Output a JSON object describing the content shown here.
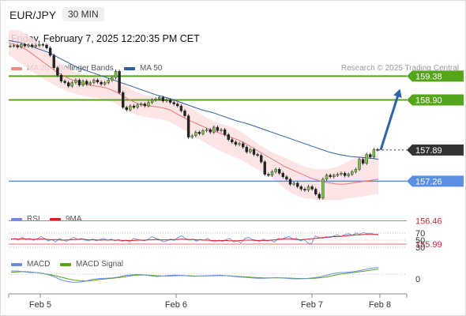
{
  "header": {
    "symbol": "EUR/JPY",
    "timeframe": "30 MIN",
    "datetime": "Friday, February 7, 2025 12:20:35 PM CET",
    "credit": "Research © 2025 Trading Central"
  },
  "colors": {
    "bollinger": "#f08a8a",
    "ma50": "#2f5e9e",
    "resistance": "#55a51b",
    "support": "#5b8fe6",
    "minor_level": "#ec6b7a",
    "arrow": "#2f62a8",
    "current": "#333333",
    "rsi": "#6b8fe0",
    "rsi_ma": "#d81e1e",
    "macd": "#6b8fe0",
    "macd_signal": "#55a51b"
  },
  "chart_data": [
    {
      "type": "candlestick",
      "panel": "price",
      "legend": [
        {
          "name": "MA 20 + Bollinger Bands",
          "color": "#f08a8a"
        },
        {
          "name": "MA 50",
          "color": "#2f5e9e"
        }
      ],
      "ylim": [
        155.9,
        159.6
      ],
      "x_ticks": [
        "Feb 5",
        "Feb 6",
        "Feb 7",
        "Feb 8"
      ],
      "levels": [
        {
          "label": "159.38",
          "value": 159.38,
          "kind": "resistance"
        },
        {
          "label": "158.90",
          "value": 158.9,
          "kind": "resistance"
        },
        {
          "label": "157.89",
          "value": 157.89,
          "kind": "current"
        },
        {
          "label": "157.26",
          "value": 157.26,
          "kind": "support"
        },
        {
          "label": "156.46",
          "value": 156.46,
          "kind": "minor"
        },
        {
          "label": "155.99",
          "value": 155.99,
          "kind": "minor"
        }
      ],
      "close": [
        159.99,
        160.0,
        159.97,
        160.02,
        159.99,
        160.01,
        159.98,
        160.0,
        160.02,
        160.01,
        159.95,
        159.8,
        159.55,
        159.4,
        159.28,
        159.25,
        159.18,
        159.25,
        159.3,
        159.2,
        159.28,
        159.22,
        159.25,
        159.3,
        159.26,
        159.22,
        159.25,
        159.3,
        159.35,
        159.48,
        159.05,
        158.75,
        158.7,
        158.78,
        158.75,
        158.8,
        158.82,
        158.78,
        158.85,
        158.9,
        158.92,
        158.95,
        158.88,
        158.9,
        158.85,
        158.82,
        158.78,
        158.68,
        158.58,
        158.15,
        158.18,
        158.25,
        158.22,
        158.28,
        158.3,
        158.25,
        158.35,
        158.28,
        158.3,
        158.2,
        158.1,
        158.05,
        158.0,
        158.02,
        157.95,
        157.85,
        157.9,
        157.8,
        157.78,
        157.65,
        157.4,
        157.38,
        157.45,
        157.5,
        157.42,
        157.35,
        157.3,
        157.2,
        157.22,
        157.15,
        157.1,
        157.08,
        157.15,
        157.1,
        157.0,
        156.92,
        157.3,
        157.38,
        157.35,
        157.38,
        157.4,
        157.42,
        157.37,
        157.4,
        157.45,
        157.5,
        157.7,
        157.62,
        157.8,
        157.75,
        157.9,
        157.89
      ],
      "ma50": [
        160.1,
        160.08,
        160.06,
        160.02,
        159.98,
        159.94,
        159.9,
        159.86,
        159.8,
        159.74,
        159.68,
        159.62,
        159.56,
        159.52,
        159.48,
        159.44,
        159.4,
        159.36,
        159.32,
        159.28,
        159.24,
        159.2,
        159.16,
        159.12,
        159.08,
        159.04,
        159.0,
        158.97,
        158.94,
        158.9,
        158.86,
        158.82,
        158.78,
        158.74,
        158.7,
        158.67,
        158.64,
        158.6,
        158.56,
        158.52,
        158.48,
        158.45,
        158.42,
        158.38,
        158.34,
        158.3,
        158.26,
        158.22,
        158.18,
        158.14,
        158.1,
        158.06,
        158.02,
        157.98,
        157.94,
        157.9,
        157.86,
        157.83,
        157.8,
        157.78,
        157.76,
        157.75,
        157.74,
        157.73,
        157.72,
        157.7
      ],
      "ma20": [
        160.05,
        160.02,
        159.96,
        159.88,
        159.78,
        159.68,
        159.58,
        159.48,
        159.4,
        159.33,
        159.28,
        159.24,
        159.2,
        159.18,
        159.16,
        159.12,
        159.06,
        158.98,
        158.9,
        158.84,
        158.8,
        158.78,
        158.76,
        158.74,
        158.7,
        158.62,
        158.55,
        158.48,
        158.42,
        158.36,
        158.3,
        158.25,
        158.2,
        158.15,
        158.1,
        158.04,
        157.96,
        157.88,
        157.8,
        157.72,
        157.64,
        157.56,
        157.5,
        157.44,
        157.38,
        157.32,
        157.28,
        157.24,
        157.22,
        157.2,
        157.2,
        157.22,
        157.24,
        157.26,
        157.28,
        157.3
      ],
      "bb_upper": [
        160.3,
        160.32,
        160.28,
        160.2,
        160.1,
        159.98,
        159.85,
        159.72,
        159.6,
        159.52,
        159.46,
        159.42,
        159.38,
        159.36,
        159.34,
        159.32,
        159.3,
        159.22,
        159.14,
        159.06,
        159.0,
        158.98,
        158.96,
        158.95,
        158.94,
        158.9,
        158.82,
        158.74,
        158.66,
        158.58,
        158.5,
        158.44,
        158.4,
        158.36,
        158.3,
        158.22,
        158.12,
        158.02,
        157.94,
        157.86,
        157.8,
        157.74,
        157.68,
        157.62,
        157.56,
        157.52,
        157.5,
        157.5,
        157.52,
        157.56,
        157.62,
        157.7,
        157.76,
        157.8,
        157.8,
        157.78
      ],
      "bb_lower": [
        159.8,
        159.72,
        159.62,
        159.52,
        159.42,
        159.34,
        159.26,
        159.18,
        159.12,
        159.06,
        159.02,
        158.98,
        158.96,
        158.94,
        158.92,
        158.88,
        158.82,
        158.74,
        158.66,
        158.6,
        158.56,
        158.54,
        158.52,
        158.5,
        158.46,
        158.38,
        158.3,
        158.22,
        158.14,
        158.06,
        157.98,
        157.9,
        157.84,
        157.78,
        157.72,
        157.66,
        157.58,
        157.5,
        157.42,
        157.34,
        157.24,
        157.12,
        157.02,
        156.96,
        156.92,
        156.9,
        156.88,
        156.88,
        156.88,
        156.88,
        156.9,
        156.92,
        156.94,
        156.96,
        156.98,
        157.0
      ],
      "projection": {
        "from": 157.89,
        "to": 159.0
      }
    },
    {
      "type": "line",
      "panel": "rsi",
      "legend": [
        {
          "name": "RSI",
          "color": "#6b8fe0"
        },
        {
          "name": "9MA",
          "color": "#d81e1e"
        }
      ],
      "y_ticks": [
        "70",
        "50",
        "30"
      ],
      "ylim": [
        25,
        75
      ],
      "series": [
        {
          "name": "RSI",
          "values": [
            52,
            55,
            50,
            58,
            52,
            55,
            50,
            53,
            60,
            55,
            48,
            52,
            45,
            55,
            50,
            47,
            53,
            58,
            52,
            55,
            50,
            49,
            53,
            48,
            52,
            55,
            50,
            53,
            48,
            52,
            47,
            50,
            45,
            55,
            52,
            50,
            48,
            53,
            60,
            55,
            52,
            45,
            48,
            53,
            49,
            58,
            62,
            55,
            50,
            53,
            47,
            52,
            50,
            55,
            48,
            45,
            50,
            46,
            52,
            55,
            45,
            48,
            42,
            55,
            58,
            52,
            50,
            46,
            53,
            48,
            50,
            44,
            55,
            52,
            58,
            60,
            53,
            55,
            48,
            52,
            42,
            40,
            62,
            58,
            55,
            60,
            57,
            62,
            65,
            60,
            66,
            68,
            64,
            70,
            67,
            72,
            68,
            70,
            66,
            65
          ]
        },
        {
          "name": "9MA",
          "values": [
            53,
            54,
            53,
            54,
            53,
            53,
            52,
            53,
            53,
            53,
            52,
            51,
            52,
            51,
            50,
            51,
            51,
            52,
            52,
            53,
            52,
            51,
            51,
            51,
            50,
            51,
            50,
            51,
            50,
            50,
            49,
            49,
            49,
            49,
            50,
            50,
            50,
            51,
            51,
            52,
            51,
            51,
            51,
            51,
            52,
            52,
            53,
            52,
            52,
            52,
            51,
            51,
            50,
            50,
            49,
            49,
            48,
            49,
            49,
            48,
            48,
            48,
            49,
            50,
            50,
            50,
            49,
            49,
            49,
            49,
            50,
            51,
            52,
            53,
            54,
            54,
            53,
            52,
            51,
            52,
            53,
            54,
            55,
            56,
            57,
            58,
            59,
            60,
            60,
            61,
            62,
            63,
            64,
            65,
            65,
            66,
            66,
            66,
            66,
            66
          ]
        }
      ]
    },
    {
      "type": "line",
      "panel": "macd",
      "legend": [
        {
          "name": "MACD",
          "color": "#6b8fe0"
        },
        {
          "name": "MACD Signal",
          "color": "#55a51b"
        }
      ],
      "y_ticks": [
        "0"
      ],
      "ylim": [
        -1,
        1
      ],
      "series": [
        {
          "name": "MACD",
          "values": [
            0.2,
            0.2,
            0.15,
            0.1,
            0.1,
            0.05,
            -0.05,
            -0.2,
            -0.38,
            -0.48,
            -0.52,
            -0.5,
            -0.42,
            -0.32,
            -0.28,
            -0.26,
            -0.24,
            -0.18,
            -0.08,
            -0.05,
            -0.02,
            -0.05,
            -0.1,
            -0.15,
            -0.12,
            -0.08,
            -0.06,
            -0.08,
            -0.12,
            -0.14,
            -0.12,
            -0.1,
            -0.08,
            -0.06,
            -0.1,
            -0.14,
            -0.18,
            -0.2,
            -0.24,
            -0.26,
            -0.26,
            -0.24,
            -0.22,
            -0.25,
            -0.28,
            -0.3,
            -0.3,
            -0.26,
            -0.22,
            -0.15,
            -0.05,
            0.05,
            0.1,
            0.12,
            0.15,
            0.22,
            0.3,
            0.38,
            0.42
          ]
        },
        {
          "name": "MACD Signal",
          "values": [
            0.12,
            0.14,
            0.16,
            0.14,
            0.1,
            0.04,
            -0.02,
            -0.1,
            -0.2,
            -0.3,
            -0.38,
            -0.42,
            -0.44,
            -0.4,
            -0.34,
            -0.3,
            -0.26,
            -0.22,
            -0.16,
            -0.1,
            -0.06,
            -0.05,
            -0.07,
            -0.1,
            -0.12,
            -0.12,
            -0.1,
            -0.09,
            -0.1,
            -0.12,
            -0.12,
            -0.11,
            -0.1,
            -0.09,
            -0.1,
            -0.12,
            -0.15,
            -0.17,
            -0.2,
            -0.22,
            -0.24,
            -0.24,
            -0.24,
            -0.24,
            -0.25,
            -0.27,
            -0.28,
            -0.28,
            -0.26,
            -0.22,
            -0.16,
            -0.08,
            0.0,
            0.05,
            0.1,
            0.15,
            0.2,
            0.26,
            0.32
          ]
        }
      ]
    }
  ]
}
